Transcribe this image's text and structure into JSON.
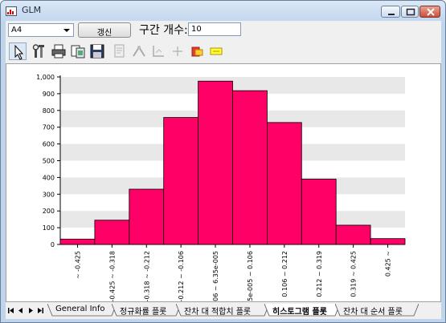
{
  "window": {
    "title": "GLM"
  },
  "controls": {
    "variable_value": "A4",
    "refresh_label": "갱신",
    "bin_count_label": "구간 개수:",
    "bin_count_value": "10"
  },
  "toolbar_icons": [
    "pointer-icon",
    "properties-icon",
    "print-icon",
    "copy-icon",
    "save-icon",
    "page-icon",
    "scale-icon",
    "axis-icon",
    "crosshair-icon",
    "export-icon",
    "label-icon"
  ],
  "chart_data": {
    "type": "bar",
    "categories": [
      "~ -0.425",
      "-0.425 ~ -0.318",
      "-0.318 ~ -0.212",
      "-0.212 ~ -0.106",
      "-0.106 ~ 6.35e-005",
      "6.35e-005 ~ 0.106",
      "0.106 ~ 0.212",
      "0.212 ~ 0.319",
      "0.319 ~ 0.425",
      "0.425 ~"
    ],
    "values": [
      32,
      145,
      330,
      758,
      975,
      918,
      728,
      390,
      115,
      35
    ],
    "ylim": [
      0,
      1000
    ],
    "yticks": [
      "0",
      "100",
      "200",
      "300",
      "400",
      "500",
      "600",
      "700",
      "800",
      "900",
      "1,000"
    ],
    "bar_color": "#ff0066",
    "grid": "alternating bands"
  },
  "tabs": [
    {
      "label": "General Info",
      "active": false
    },
    {
      "label": "정규화률 플롯",
      "active": false
    },
    {
      "label": "잔차 대 적합치 플롯",
      "active": false
    },
    {
      "label": "히스토그램 플롯",
      "active": true
    },
    {
      "label": "잔차 대 순서 플롯",
      "active": false
    }
  ]
}
